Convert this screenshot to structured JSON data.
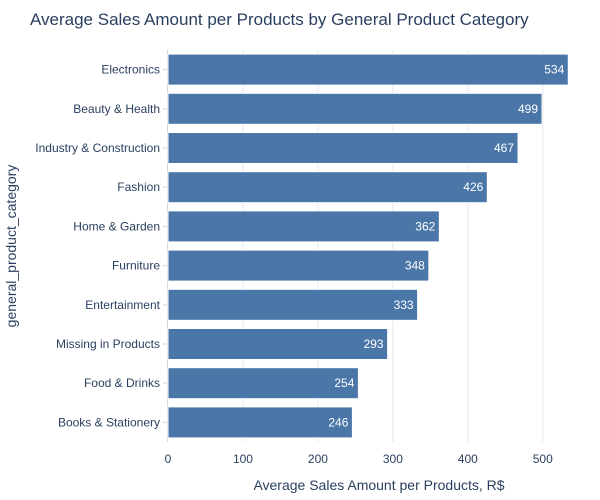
{
  "chart_data": {
    "type": "bar",
    "orientation": "horizontal",
    "title": "Average Sales Amount per Products by General Product Category",
    "xlabel": "Average Sales Amount per Products, R$",
    "ylabel": "general_product_category",
    "categories": [
      "Electronics",
      "Beauty & Health",
      "Industry & Construction",
      "Fashion",
      "Home & Garden",
      "Furniture",
      "Entertainment",
      "Missing in Products",
      "Food & Drinks",
      "Books & Stationery"
    ],
    "values": [
      534,
      499,
      467,
      426,
      362,
      348,
      333,
      293,
      254,
      246
    ],
    "value_labels": [
      "534",
      "499",
      "467",
      "426",
      "362",
      "348",
      "333",
      "293",
      "254",
      "246"
    ],
    "xlim": [
      0,
      563
    ],
    "xticks": [
      0,
      100,
      200,
      300,
      400,
      500
    ],
    "xtick_labels": [
      "0",
      "100",
      "200",
      "300",
      "400",
      "500"
    ],
    "grid": "vertical",
    "legend": "none",
    "colors": {
      "bar": "#4a76a8",
      "bar_edge": "#ffffff",
      "grid": "#e5e8ee",
      "text": "#2a3f5f",
      "bar_text": "#ffffff",
      "background": "#ffffff"
    }
  }
}
